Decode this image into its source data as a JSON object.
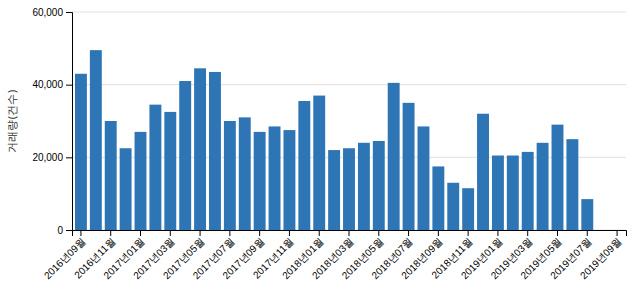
{
  "chart_data": {
    "type": "bar",
    "categories": [
      "2016년09월",
      null,
      "2016년11월",
      null,
      "2017년01월",
      null,
      "2017년03월",
      null,
      "2017년05월",
      null,
      "2017년07월",
      null,
      "2017년09월",
      null,
      "2017년11월",
      null,
      "2018년01월",
      null,
      "2018년03월",
      null,
      "2018년05월",
      null,
      "2018년07월",
      null,
      "2018년09월",
      null,
      "2018년11월",
      null,
      "2019년01월",
      null,
      "2019년03월",
      null,
      "2019년05월",
      null,
      "2019년07월",
      null,
      "2019년09월"
    ],
    "values": [
      43000,
      49500,
      30000,
      22500,
      27000,
      34500,
      32500,
      41000,
      44500,
      43500,
      30000,
      31000,
      27000,
      28500,
      27500,
      35500,
      37000,
      22000,
      22500,
      24000,
      24500,
      40500,
      35000,
      28500,
      17500,
      13000,
      11500,
      32000,
      20500,
      20500,
      21500,
      24000,
      29000,
      25000,
      8500,
      0,
      0
    ],
    "color": "#2e75b6",
    "ylabel": "거래량(건수)",
    "ylim": [
      0,
      60000
    ],
    "yticks": [
      0,
      {
        "value": 20000,
        "label": "20,000"
      },
      {
        "value": 40000,
        "label": "40,000"
      },
      {
        "value": 60000,
        "label": "60,000"
      }
    ],
    "grid": true
  }
}
